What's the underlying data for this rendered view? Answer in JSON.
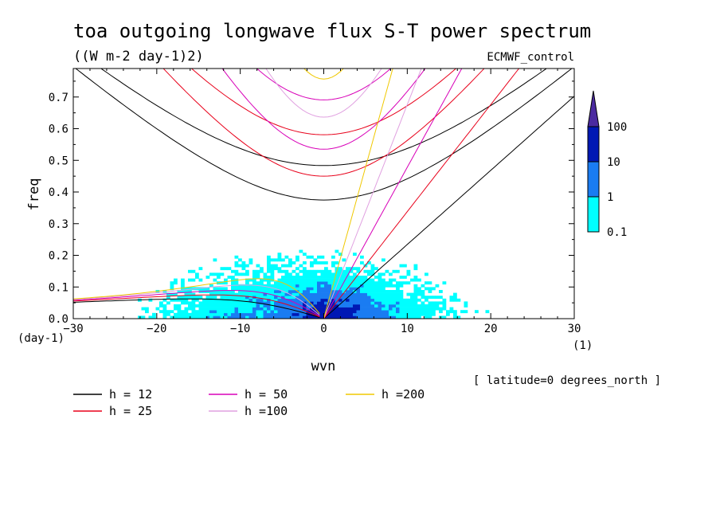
{
  "chart_data": {
    "type": "heatmap",
    "title": "toa outgoing longwave flux S-T power spectrum",
    "subtitle": "((W m-2 day-1)2)",
    "dataset": "ECMWF_control",
    "xlabel": "wvn",
    "ylabel": "freq",
    "x_unit": "(1)",
    "y_unit": "(day-1)",
    "xlim": [
      -30,
      30
    ],
    "ylim": [
      0,
      0.79
    ],
    "xticks": [
      -30,
      -20,
      -10,
      0,
      10,
      20,
      30
    ],
    "yticks": [
      0.0,
      0.1,
      0.2,
      0.3,
      0.4,
      0.5,
      0.6,
      0.7
    ],
    "xtick_labels": [
      "−30",
      "−20",
      "−10",
      "0",
      "10",
      "20",
      "30"
    ],
    "ytick_labels": [
      "0.0",
      "0.1",
      "0.2",
      "0.3",
      "0.4",
      "0.5",
      "0.6",
      "0.7"
    ],
    "note": "[ latitude=0 degrees_north ]",
    "colorbar": {
      "levels": [
        0.1,
        1,
        10,
        100
      ],
      "labels": [
        "0.1",
        "1",
        "10",
        "100"
      ],
      "colors": [
        "#00ffff",
        "#1a7cf2",
        "#0018b4",
        "#4b2aa0"
      ]
    },
    "dispersion_curves": [
      {
        "label": "h = 12",
        "h": 12,
        "color": "#000000"
      },
      {
        "label": "h = 25",
        "h": 25,
        "color": "#e8001a"
      },
      {
        "label": "h = 50",
        "h": 50,
        "color": "#d800b8"
      },
      {
        "label": "h =100",
        "h": 100,
        "color": "#e0a0e0"
      },
      {
        "label": "h =200",
        "h": 200,
        "color": "#f0c800"
      }
    ],
    "grid": false,
    "legend_position": "bottom"
  }
}
